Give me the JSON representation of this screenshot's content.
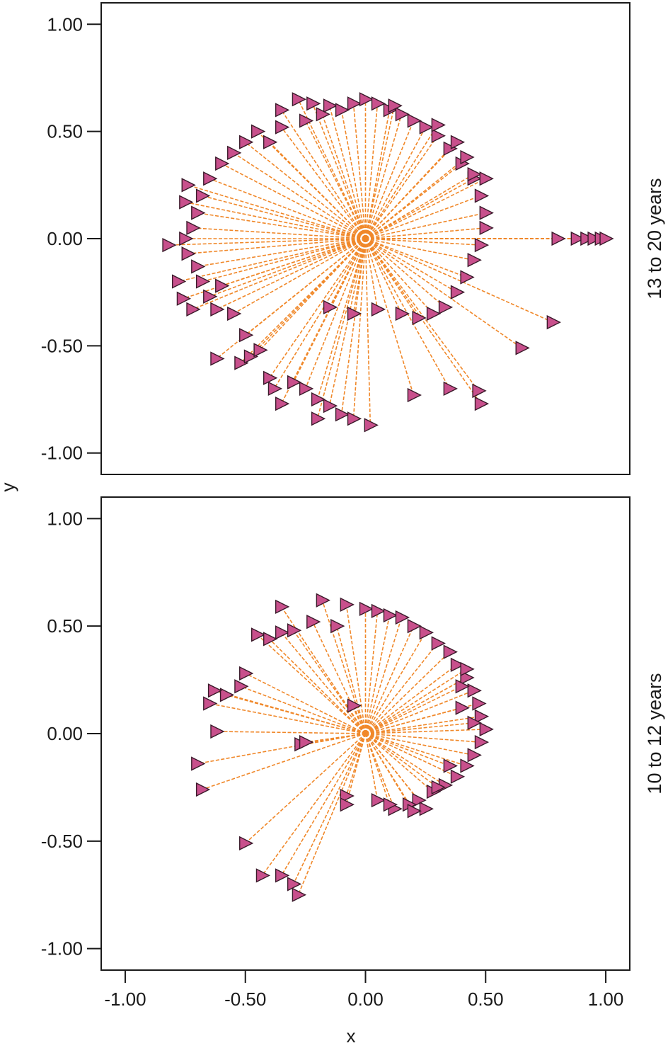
{
  "chart_data": {
    "type": "scatter",
    "xlabel": "x",
    "ylabel": "y",
    "xlim": [
      -1.1,
      1.1
    ],
    "ylim": [
      -1.1,
      1.1
    ],
    "x_ticks": [
      "-1.00",
      "-0.50",
      "0.00",
      "0.50",
      "1.00"
    ],
    "y_ticks": [
      "1.00",
      "0.50",
      "0.00",
      "-0.50",
      "-1.00"
    ],
    "x_tick_values": [
      -1,
      -0.5,
      0,
      0.5,
      1
    ],
    "y_tick_values": [
      1,
      0.5,
      0,
      -0.5,
      -1
    ],
    "marker_color": "#c8508c",
    "line_color": "#f0882a",
    "grid": false,
    "panels": [
      {
        "label": "13 to 20 years",
        "points": [
          [
            -0.35,
            0.6
          ],
          [
            -0.28,
            0.65
          ],
          [
            -0.22,
            0.63
          ],
          [
            -0.15,
            0.62
          ],
          [
            -0.1,
            0.6
          ],
          [
            -0.05,
            0.63
          ],
          [
            0.0,
            0.65
          ],
          [
            0.05,
            0.63
          ],
          [
            0.1,
            0.6
          ],
          [
            0.15,
            0.58
          ],
          [
            0.2,
            0.55
          ],
          [
            0.25,
            0.52
          ],
          [
            0.3,
            0.48
          ],
          [
            0.35,
            0.42
          ],
          [
            0.4,
            0.35
          ],
          [
            0.45,
            0.28
          ],
          [
            0.48,
            0.2
          ],
          [
            0.5,
            0.12
          ],
          [
            0.5,
            0.05
          ],
          [
            0.48,
            -0.03
          ],
          [
            0.45,
            -0.1
          ],
          [
            0.42,
            -0.18
          ],
          [
            0.38,
            -0.25
          ],
          [
            0.33,
            -0.32
          ],
          [
            0.28,
            -0.35
          ],
          [
            0.22,
            -0.37
          ],
          [
            0.15,
            -0.35
          ],
          [
            0.05,
            -0.33
          ],
          [
            -0.05,
            -0.35
          ],
          [
            -0.15,
            -0.32
          ],
          [
            -0.45,
            0.5
          ],
          [
            -0.5,
            0.45
          ],
          [
            -0.55,
            0.4
          ],
          [
            -0.6,
            0.35
          ],
          [
            -0.65,
            0.28
          ],
          [
            -0.68,
            0.2
          ],
          [
            -0.7,
            0.12
          ],
          [
            -0.72,
            0.05
          ],
          [
            -0.75,
            0.0
          ],
          [
            -0.74,
            -0.07
          ],
          [
            -0.7,
            -0.13
          ],
          [
            -0.68,
            -0.2
          ],
          [
            -0.65,
            -0.27
          ],
          [
            -0.62,
            -0.33
          ],
          [
            -0.78,
            -0.2
          ],
          [
            -0.76,
            -0.28
          ],
          [
            -0.72,
            -0.33
          ],
          [
            -0.74,
            0.25
          ],
          [
            -0.75,
            0.17
          ],
          [
            -0.82,
            -0.03
          ],
          [
            -0.6,
            -0.22
          ],
          [
            -0.55,
            -0.35
          ],
          [
            -0.5,
            -0.45
          ],
          [
            -0.62,
            -0.56
          ],
          [
            -0.52,
            -0.58
          ],
          [
            -0.48,
            -0.55
          ],
          [
            -0.44,
            -0.52
          ],
          [
            -0.4,
            -0.65
          ],
          [
            -0.38,
            -0.7
          ],
          [
            -0.35,
            -0.77
          ],
          [
            -0.3,
            -0.67
          ],
          [
            -0.25,
            -0.7
          ],
          [
            -0.2,
            -0.75
          ],
          [
            -0.15,
            -0.78
          ],
          [
            -0.1,
            -0.82
          ],
          [
            -0.2,
            -0.84
          ],
          [
            -0.05,
            -0.84
          ],
          [
            0.02,
            -0.87
          ],
          [
            0.2,
            -0.73
          ],
          [
            0.35,
            -0.7
          ],
          [
            0.47,
            -0.71
          ],
          [
            0.48,
            -0.77
          ],
          [
            0.65,
            -0.51
          ],
          [
            0.78,
            -0.39
          ],
          [
            0.8,
            0.0
          ],
          [
            0.88,
            0.0
          ],
          [
            0.92,
            0.0
          ],
          [
            0.95,
            0.0
          ],
          [
            0.98,
            0.0
          ],
          [
            1.0,
            0.0
          ],
          [
            -0.4,
            0.45
          ],
          [
            -0.35,
            0.52
          ],
          [
            -0.25,
            0.55
          ],
          [
            -0.18,
            0.58
          ],
          [
            0.12,
            0.62
          ],
          [
            0.3,
            0.53
          ],
          [
            0.38,
            0.45
          ],
          [
            0.42,
            0.38
          ],
          [
            0.45,
            0.3
          ],
          [
            0.5,
            0.28
          ]
        ]
      },
      {
        "label": "10 to 12 years",
        "points": [
          [
            -0.35,
            0.59
          ],
          [
            -0.18,
            0.62
          ],
          [
            -0.08,
            0.6
          ],
          [
            0.0,
            0.58
          ],
          [
            0.05,
            0.57
          ],
          [
            0.1,
            0.55
          ],
          [
            0.15,
            0.54
          ],
          [
            0.2,
            0.5
          ],
          [
            0.25,
            0.47
          ],
          [
            0.3,
            0.42
          ],
          [
            0.35,
            0.38
          ],
          [
            0.38,
            0.32
          ],
          [
            0.42,
            0.26
          ],
          [
            0.45,
            0.2
          ],
          [
            0.47,
            0.14
          ],
          [
            0.48,
            0.08
          ],
          [
            0.5,
            0.02
          ],
          [
            0.48,
            -0.04
          ],
          [
            0.45,
            -0.1
          ],
          [
            0.42,
            -0.15
          ],
          [
            0.38,
            -0.2
          ],
          [
            0.33,
            -0.24
          ],
          [
            0.28,
            -0.27
          ],
          [
            0.22,
            -0.31
          ],
          [
            0.18,
            -0.33
          ],
          [
            0.12,
            -0.35
          ],
          [
            0.05,
            -0.31
          ],
          [
            -0.08,
            -0.29
          ],
          [
            -0.08,
            -0.33
          ],
          [
            0.25,
            -0.35
          ],
          [
            -0.22,
            0.52
          ],
          [
            -0.12,
            0.5
          ],
          [
            -0.45,
            0.46
          ],
          [
            -0.4,
            0.44
          ],
          [
            -0.35,
            0.47
          ],
          [
            -0.3,
            0.48
          ],
          [
            -0.5,
            0.28
          ],
          [
            -0.52,
            0.22
          ],
          [
            -0.58,
            0.18
          ],
          [
            -0.63,
            0.2
          ],
          [
            -0.65,
            0.14
          ],
          [
            -0.62,
            0.01
          ],
          [
            -0.27,
            -0.05
          ],
          [
            -0.25,
            -0.04
          ],
          [
            -0.7,
            -0.14
          ],
          [
            -0.68,
            -0.26
          ],
          [
            -0.5,
            -0.51
          ],
          [
            -0.43,
            -0.66
          ],
          [
            -0.35,
            -0.66
          ],
          [
            -0.3,
            -0.7
          ],
          [
            -0.28,
            -0.75
          ],
          [
            -0.05,
            0.13
          ],
          [
            0.4,
            0.12
          ],
          [
            0.45,
            0.05
          ],
          [
            0.35,
            -0.15
          ],
          [
            0.3,
            -0.25
          ],
          [
            0.2,
            -0.36
          ],
          [
            0.1,
            -0.33
          ],
          [
            0.42,
            0.3
          ],
          [
            0.4,
            0.22
          ]
        ]
      }
    ]
  }
}
